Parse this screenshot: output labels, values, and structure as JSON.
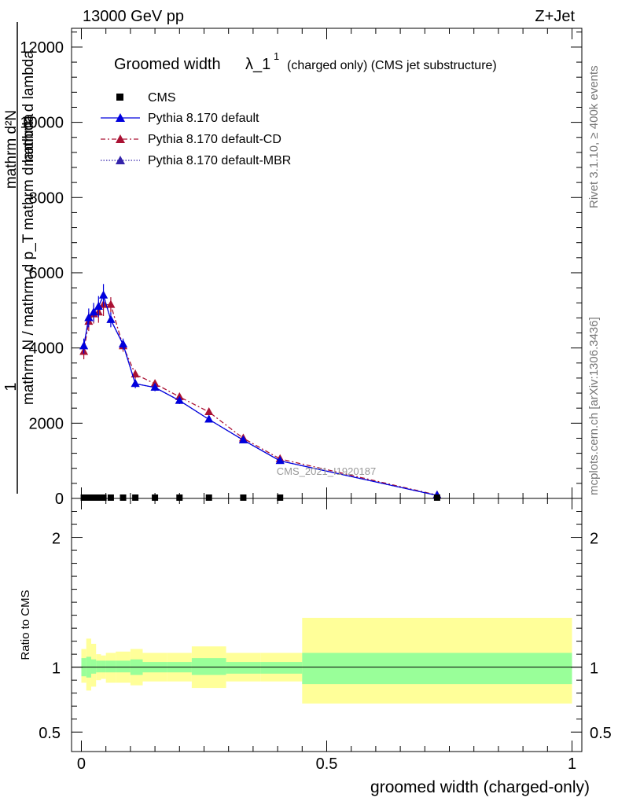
{
  "header": {
    "energy_label": "13000 GeV pp",
    "process_label": "Z+Jet"
  },
  "side": {
    "rivet_label": "Rivet 3.1.10, ≥ 400k events",
    "mcplots_label": "mcplots.cern.ch [arXiv:1306.3436]"
  },
  "watermark": "CMS_2021_I1920187",
  "colors": {
    "cms": "#000000",
    "default": "#0000dd",
    "cd": "#aa1133",
    "mbr": "#3322aa",
    "band_outer": "#ffff99",
    "band_inner": "#99ff99"
  },
  "chart_data": [
    {
      "type": "line",
      "title": "Groomed width",
      "title_symbol": "λ_1",
      "title_superscript": "1",
      "title_note": "(charged only) (CMS jet substructure)",
      "xlabel": "groomed width (charged-only)",
      "ylabel_top": "1",
      "ylabel_num": "mathrm d²N",
      "ylabel_den_a": "mathrm d p",
      "ylabel_den_a_sub": "T",
      "ylabel_den_b": "mathrm d lambda",
      "ylabel_den_c": "mathrm d",
      "ylabel_den_d": "mathrm N / mathrm d p",
      "ylabel_den_d_sub": "T",
      "ylabel_den_e": "mathrm dφ",
      "ylabel_full": "mathrm N / mathrm d p_T mathrm d lambda",
      "xlim": [
        -0.02,
        1.02
      ],
      "ylim": [
        0,
        12500
      ],
      "xticks": [
        0,
        0.5,
        1
      ],
      "xtick_labels": [
        "0",
        "0.5",
        "1"
      ],
      "yticks": [
        0,
        2000,
        4000,
        6000,
        8000,
        10000,
        12000
      ],
      "ytick_labels": [
        "0",
        "2000",
        "4000",
        "6000",
        "8000",
        "10000",
        "12000"
      ],
      "legend_position": "top-left",
      "series": [
        {
          "name": "CMS",
          "style": "marker-square",
          "x": [
            0.005,
            0.015,
            0.025,
            0.035,
            0.045,
            0.06,
            0.085,
            0.11,
            0.15,
            0.2,
            0.26,
            0.33,
            0.405,
            0.725
          ],
          "values": [
            0,
            0,
            0,
            0,
            0,
            0,
            0,
            0,
            0,
            0,
            0,
            0,
            0,
            0
          ]
        },
        {
          "name": "Pythia 8.170 default",
          "style": "solid",
          "x": [
            0.005,
            0.015,
            0.025,
            0.035,
            0.045,
            0.06,
            0.085,
            0.11,
            0.15,
            0.2,
            0.26,
            0.33,
            0.405,
            0.725
          ],
          "values": [
            4050,
            4800,
            4950,
            5100,
            5400,
            4750,
            4100,
            3050,
            2950,
            2600,
            2100,
            1550,
            1000,
            80
          ],
          "errors": [
            200,
            250,
            250,
            280,
            300,
            200,
            150,
            120,
            100,
            90,
            80,
            60,
            50,
            20
          ]
        },
        {
          "name": "Pythia 8.170 default-CD",
          "style": "dash-dot",
          "x": [
            0.005,
            0.015,
            0.025,
            0.035,
            0.045,
            0.06,
            0.085,
            0.11,
            0.15,
            0.2,
            0.26,
            0.33,
            0.405,
            0.725
          ],
          "values": [
            3900,
            4700,
            4900,
            4950,
            5150,
            5150,
            4050,
            3300,
            3050,
            2700,
            2300,
            1600,
            1050,
            90
          ],
          "errors": [
            200,
            250,
            250,
            280,
            300,
            200,
            150,
            120,
            100,
            90,
            80,
            60,
            50,
            20
          ]
        },
        {
          "name": "Pythia 8.170 default-MBR",
          "style": "dotted",
          "x": [
            0.005,
            0.015,
            0.025,
            0.035,
            0.045,
            0.06,
            0.085,
            0.11,
            0.15,
            0.2,
            0.26,
            0.33,
            0.405,
            0.725
          ],
          "values": [
            4050,
            4800,
            4950,
            5100,
            5400,
            4750,
            4100,
            3050,
            2950,
            2600,
            2100,
            1550,
            1000,
            80
          ]
        }
      ]
    },
    {
      "type": "area",
      "title": "",
      "xlabel": "groomed width (charged-only)",
      "ylabel": "Ratio to CMS",
      "xlim": [
        -0.02,
        1.02
      ],
      "ylim": [
        0.35,
        2.3
      ],
      "yticks": [
        0.5,
        1,
        2
      ],
      "ytick_labels": [
        "0.5",
        "1",
        "2"
      ],
      "reference_line": 1,
      "bins": [
        [
          0.0,
          0.01
        ],
        [
          0.01,
          0.02
        ],
        [
          0.02,
          0.03
        ],
        [
          0.03,
          0.04
        ],
        [
          0.04,
          0.05
        ],
        [
          0.05,
          0.07
        ],
        [
          0.07,
          0.1
        ],
        [
          0.1,
          0.125
        ],
        [
          0.125,
          0.175
        ],
        [
          0.175,
          0.225
        ],
        [
          0.225,
          0.295
        ],
        [
          0.295,
          0.365
        ],
        [
          0.365,
          0.45
        ],
        [
          0.45,
          1.0
        ]
      ],
      "total_band_low": [
        0.88,
        0.82,
        0.85,
        0.9,
        0.91,
        0.88,
        0.88,
        0.86,
        0.89,
        0.89,
        0.84,
        0.89,
        0.89,
        0.72
      ],
      "total_band_high": [
        1.14,
        1.22,
        1.18,
        1.1,
        1.09,
        1.11,
        1.12,
        1.14,
        1.11,
        1.11,
        1.16,
        1.11,
        1.11,
        1.38
      ],
      "stat_band_low": [
        0.93,
        0.92,
        0.95,
        0.96,
        0.96,
        0.96,
        0.96,
        0.94,
        0.96,
        0.96,
        0.94,
        0.95,
        0.95,
        0.87
      ],
      "stat_band_high": [
        1.07,
        1.08,
        1.06,
        1.05,
        1.05,
        1.05,
        1.05,
        1.06,
        1.04,
        1.04,
        1.07,
        1.04,
        1.04,
        1.11
      ]
    }
  ]
}
